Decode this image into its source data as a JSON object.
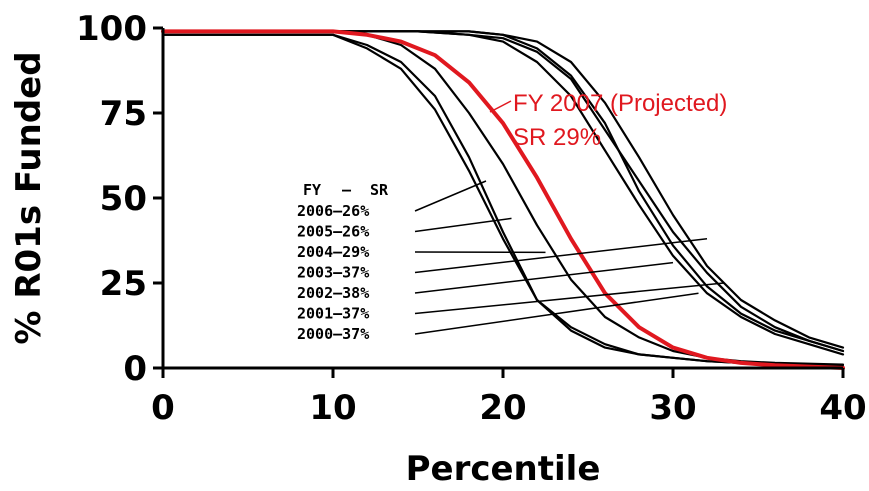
{
  "chart_data": {
    "type": "line",
    "title": "",
    "xlabel": "Percentile",
    "ylabel": "% R01s Funded",
    "xlim": [
      0,
      40
    ],
    "ylim": [
      0,
      100
    ],
    "xticks": [
      0,
      10,
      20,
      30,
      40
    ],
    "yticks": [
      0,
      25,
      50,
      75,
      100
    ],
    "grid": false,
    "colors": {
      "history": "#000000",
      "projected": "#e0181f"
    },
    "legend": {
      "header_fy": "FY",
      "header_dash": "–",
      "header_sr": "SR",
      "entries": [
        {
          "fy": "2006",
          "sr": "26%"
        },
        {
          "fy": "2005",
          "sr": "26%"
        },
        {
          "fy": "2004",
          "sr": "29%"
        },
        {
          "fy": "2003",
          "sr": "37%"
        },
        {
          "fy": "2002",
          "sr": "38%"
        },
        {
          "fy": "2001",
          "sr": "37%"
        },
        {
          "fy": "2000",
          "sr": "37%"
        }
      ]
    },
    "annotation": {
      "line1": "FY 2007 (Projected)",
      "line2": "SR 29%"
    },
    "series": [
      {
        "name": "2006",
        "projected": false,
        "points": [
          [
            0,
            98
          ],
          [
            5,
            98
          ],
          [
            10,
            98
          ],
          [
            12,
            95
          ],
          [
            14,
            90
          ],
          [
            16,
            80
          ],
          [
            18,
            62
          ],
          [
            20,
            40
          ],
          [
            22,
            20
          ],
          [
            24,
            11
          ],
          [
            26,
            6
          ],
          [
            28,
            4
          ],
          [
            30,
            3
          ],
          [
            32,
            2
          ],
          [
            34,
            1.5
          ],
          [
            36,
            1
          ],
          [
            40,
            0.5
          ]
        ]
      },
      {
        "name": "2005",
        "projected": false,
        "points": [
          [
            0,
            98
          ],
          [
            5,
            98
          ],
          [
            10,
            98
          ],
          [
            12,
            94
          ],
          [
            14,
            88
          ],
          [
            16,
            76
          ],
          [
            18,
            58
          ],
          [
            20,
            38
          ],
          [
            22,
            20
          ],
          [
            24,
            12
          ],
          [
            26,
            7
          ],
          [
            28,
            4
          ],
          [
            30,
            3
          ],
          [
            32,
            2
          ],
          [
            34,
            1.5
          ],
          [
            36,
            1
          ],
          [
            40,
            0.5
          ]
        ]
      },
      {
        "name": "2004",
        "projected": false,
        "points": [
          [
            0,
            99
          ],
          [
            5,
            99
          ],
          [
            10,
            99
          ],
          [
            12,
            98
          ],
          [
            14,
            95
          ],
          [
            16,
            88
          ],
          [
            18,
            75
          ],
          [
            20,
            60
          ],
          [
            22,
            42
          ],
          [
            24,
            26
          ],
          [
            26,
            15
          ],
          [
            28,
            9
          ],
          [
            30,
            5
          ],
          [
            32,
            3
          ],
          [
            34,
            2
          ],
          [
            36,
            1.5
          ],
          [
            40,
            1
          ]
        ]
      },
      {
        "name": "2003",
        "projected": false,
        "points": [
          [
            0,
            99
          ],
          [
            5,
            99
          ],
          [
            10,
            99
          ],
          [
            15,
            99
          ],
          [
            18,
            98
          ],
          [
            20,
            97
          ],
          [
            22,
            93
          ],
          [
            24,
            85
          ],
          [
            26,
            70
          ],
          [
            28,
            55
          ],
          [
            30,
            40
          ],
          [
            32,
            28
          ],
          [
            34,
            18
          ],
          [
            36,
            12
          ],
          [
            38,
            8
          ],
          [
            40,
            5
          ]
        ]
      },
      {
        "name": "2002",
        "projected": false,
        "points": [
          [
            0,
            99
          ],
          [
            5,
            99
          ],
          [
            10,
            99
          ],
          [
            15,
            99
          ],
          [
            18,
            99
          ],
          [
            20,
            98
          ],
          [
            22,
            96
          ],
          [
            24,
            90
          ],
          [
            26,
            78
          ],
          [
            28,
            62
          ],
          [
            30,
            45
          ],
          [
            32,
            30
          ],
          [
            34,
            20
          ],
          [
            36,
            14
          ],
          [
            38,
            9
          ],
          [
            40,
            6
          ]
        ]
      },
      {
        "name": "2001",
        "projected": false,
        "points": [
          [
            0,
            99
          ],
          [
            5,
            99
          ],
          [
            10,
            99
          ],
          [
            15,
            99
          ],
          [
            18,
            99
          ],
          [
            20,
            98
          ],
          [
            22,
            94
          ],
          [
            24,
            86
          ],
          [
            26,
            72
          ],
          [
            28,
            52
          ],
          [
            30,
            36
          ],
          [
            32,
            24
          ],
          [
            34,
            16
          ],
          [
            36,
            11
          ],
          [
            38,
            8
          ],
          [
            40,
            5
          ]
        ]
      },
      {
        "name": "2000",
        "projected": false,
        "points": [
          [
            0,
            99
          ],
          [
            5,
            99
          ],
          [
            10,
            99
          ],
          [
            15,
            99
          ],
          [
            18,
            98
          ],
          [
            20,
            96
          ],
          [
            22,
            90
          ],
          [
            24,
            80
          ],
          [
            26,
            64
          ],
          [
            28,
            48
          ],
          [
            30,
            33
          ],
          [
            32,
            22
          ],
          [
            34,
            15
          ],
          [
            36,
            10
          ],
          [
            38,
            7
          ],
          [
            40,
            4
          ]
        ]
      },
      {
        "name": "FY 2007 (Projected)",
        "projected": true,
        "points": [
          [
            0,
            99
          ],
          [
            5,
            99
          ],
          [
            10,
            99
          ],
          [
            12,
            98
          ],
          [
            14,
            96
          ],
          [
            16,
            92
          ],
          [
            18,
            84
          ],
          [
            20,
            72
          ],
          [
            22,
            56
          ],
          [
            24,
            38
          ],
          [
            26,
            22
          ],
          [
            28,
            12
          ],
          [
            30,
            6
          ],
          [
            32,
            3
          ],
          [
            34,
            1.5
          ],
          [
            36,
            0.8
          ],
          [
            40,
            0
          ]
        ]
      }
    ]
  }
}
